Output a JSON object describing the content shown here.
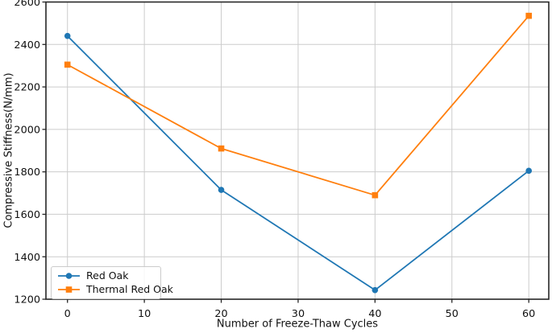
{
  "chart_data": {
    "type": "line",
    "title": "",
    "xlabel": "Number of Freeze-Thaw Cycles",
    "ylabel": "Compressive Stiffness(N/mm)",
    "x": [
      0,
      20,
      40,
      60
    ],
    "series": [
      {
        "name": "Red Oak",
        "color": "#1f77b4",
        "marker": "circle",
        "values": [
          2440,
          1715,
          1243,
          1805
        ]
      },
      {
        "name": "Thermal Red Oak",
        "color": "#ff7f0e",
        "marker": "square",
        "values": [
          2305,
          1910,
          1690,
          2535
        ]
      }
    ],
    "xlim": [
      -2.8,
      62.6
    ],
    "ylim": [
      1200,
      2600
    ],
    "xticks": [
      0,
      10,
      20,
      30,
      40,
      50,
      60
    ],
    "yticks": [
      1200,
      1400,
      1600,
      1800,
      2000,
      2200,
      2400,
      2600
    ],
    "grid": true,
    "grid_color": "#cccccc",
    "spine_color": "#262626",
    "tick_color": "#262626",
    "legend_position": "lower-left",
    "background_color": "#ffffff"
  }
}
